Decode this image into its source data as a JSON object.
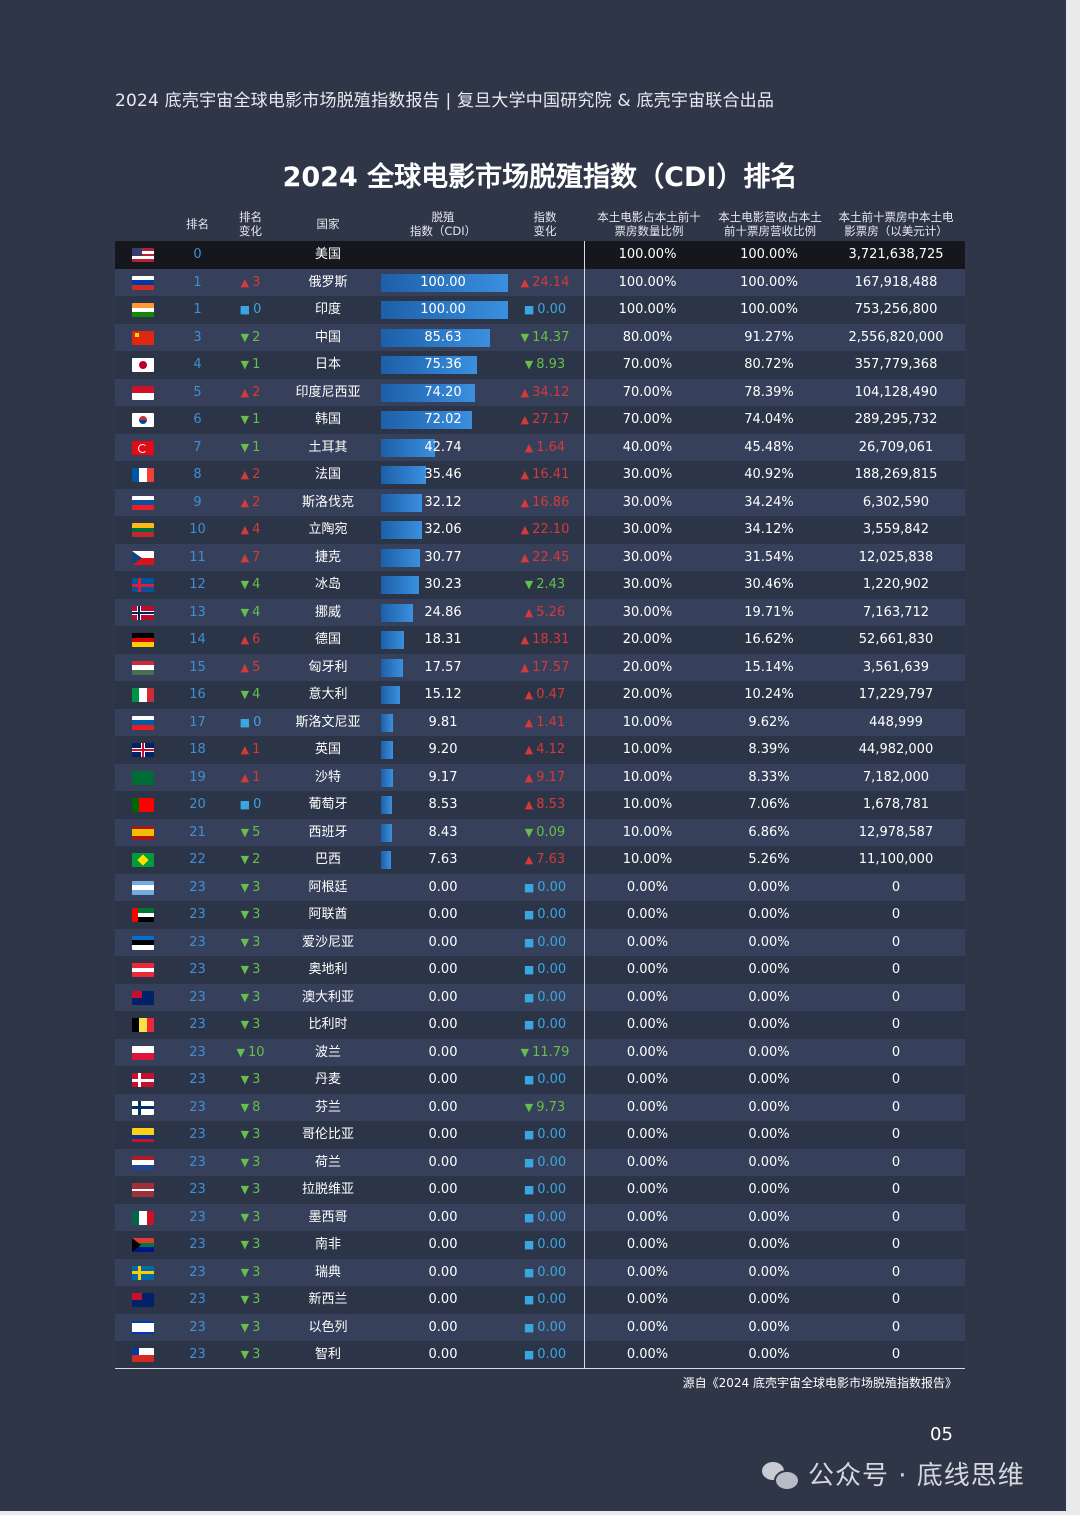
{
  "header": "2024 底壳宇宙全球电影市场脱殖指数报告 | 复旦大学中国研究院 & 底壳宇宙联合出品",
  "title": "2024 全球电影市场脱殖指数（CDI）排名",
  "columns": {
    "rank": "排名",
    "rank_change": "排名\n变化",
    "country": "国家",
    "cdi": "脱殖\n指数（CDI）",
    "index_change": "指数\n变化",
    "screen_share": "本土电影占本土前十\n票房数量比例",
    "revenue_share": "本土电影营收占本土\n前十票房营收比例",
    "box_office": "本土前十票房中本土电\n影票房（以美元计）"
  },
  "rows": [
    {
      "flag": "us-flag-icon",
      "rank": "0",
      "rank_change": "",
      "rank_dir": "",
      "country": "美国",
      "cdi": "",
      "cdi_value": 0,
      "index_change": "",
      "change_dir": "",
      "screen_share": "100.00%",
      "revenue_share": "100.00%",
      "box_office": "3,721,638,725"
    },
    {
      "flag": "ru-flag-icon",
      "rank": "1",
      "rank_change": "3",
      "rank_dir": "up",
      "country": "俄罗斯",
      "cdi": "100.00",
      "cdi_value": 100.0,
      "index_change": "24.14",
      "change_dir": "up",
      "screen_share": "100.00%",
      "revenue_share": "100.00%",
      "box_office": "167,918,488"
    },
    {
      "flag": "in-flag-icon",
      "rank": "1",
      "rank_change": "0",
      "rank_dir": "same",
      "country": "印度",
      "cdi": "100.00",
      "cdi_value": 100.0,
      "index_change": "0.00",
      "change_dir": "same",
      "screen_share": "100.00%",
      "revenue_share": "100.00%",
      "box_office": "753,256,800"
    },
    {
      "flag": "cn-flag-icon",
      "rank": "3",
      "rank_change": "2",
      "rank_dir": "down",
      "country": "中国",
      "cdi": "85.63",
      "cdi_value": 85.63,
      "index_change": "14.37",
      "change_dir": "down",
      "screen_share": "80.00%",
      "revenue_share": "91.27%",
      "box_office": "2,556,820,000"
    },
    {
      "flag": "jp-flag-icon",
      "rank": "4",
      "rank_change": "1",
      "rank_dir": "down",
      "country": "日本",
      "cdi": "75.36",
      "cdi_value": 75.36,
      "index_change": "8.93",
      "change_dir": "down",
      "screen_share": "70.00%",
      "revenue_share": "80.72%",
      "box_office": "357,779,368"
    },
    {
      "flag": "id-flag-icon",
      "rank": "5",
      "rank_change": "2",
      "rank_dir": "up",
      "country": "印度尼西亚",
      "cdi": "74.20",
      "cdi_value": 74.2,
      "index_change": "34.12",
      "change_dir": "up",
      "screen_share": "70.00%",
      "revenue_share": "78.39%",
      "box_office": "104,128,490"
    },
    {
      "flag": "kr-flag-icon",
      "rank": "6",
      "rank_change": "1",
      "rank_dir": "down",
      "country": "韩国",
      "cdi": "72.02",
      "cdi_value": 72.02,
      "index_change": "27.17",
      "change_dir": "up",
      "screen_share": "70.00%",
      "revenue_share": "74.04%",
      "box_office": "289,295,732"
    },
    {
      "flag": "tr-flag-icon",
      "rank": "7",
      "rank_change": "1",
      "rank_dir": "down",
      "country": "土耳其",
      "cdi": "42.74",
      "cdi_value": 42.74,
      "index_change": "1.64",
      "change_dir": "up",
      "screen_share": "40.00%",
      "revenue_share": "45.48%",
      "box_office": "26,709,061"
    },
    {
      "flag": "fr-flag-icon",
      "rank": "8",
      "rank_change": "2",
      "rank_dir": "up",
      "country": "法国",
      "cdi": "35.46",
      "cdi_value": 35.46,
      "index_change": "16.41",
      "change_dir": "up",
      "screen_share": "30.00%",
      "revenue_share": "40.92%",
      "box_office": "188,269,815"
    },
    {
      "flag": "sk-flag-icon",
      "rank": "9",
      "rank_change": "2",
      "rank_dir": "up",
      "country": "斯洛伐克",
      "cdi": "32.12",
      "cdi_value": 32.12,
      "index_change": "16.86",
      "change_dir": "up",
      "screen_share": "30.00%",
      "revenue_share": "34.24%",
      "box_office": "6,302,590"
    },
    {
      "flag": "lt-flag-icon",
      "rank": "10",
      "rank_change": "4",
      "rank_dir": "up",
      "country": "立陶宛",
      "cdi": "32.06",
      "cdi_value": 32.06,
      "index_change": "22.10",
      "change_dir": "up",
      "screen_share": "30.00%",
      "revenue_share": "34.12%",
      "box_office": "3,559,842"
    },
    {
      "flag": "cz-flag-icon",
      "rank": "11",
      "rank_change": "7",
      "rank_dir": "up",
      "country": "捷克",
      "cdi": "30.77",
      "cdi_value": 30.77,
      "index_change": "22.45",
      "change_dir": "up",
      "screen_share": "30.00%",
      "revenue_share": "31.54%",
      "box_office": "12,025,838"
    },
    {
      "flag": "is-flag-icon",
      "rank": "12",
      "rank_change": "4",
      "rank_dir": "down",
      "country": "冰岛",
      "cdi": "30.23",
      "cdi_value": 30.23,
      "index_change": "2.43",
      "change_dir": "down",
      "screen_share": "30.00%",
      "revenue_share": "30.46%",
      "box_office": "1,220,902"
    },
    {
      "flag": "no-flag-icon",
      "rank": "13",
      "rank_change": "4",
      "rank_dir": "down",
      "country": "挪威",
      "cdi": "24.86",
      "cdi_value": 24.86,
      "index_change": "5.26",
      "change_dir": "up",
      "screen_share": "30.00%",
      "revenue_share": "19.71%",
      "box_office": "7,163,712"
    },
    {
      "flag": "de-flag-icon",
      "rank": "14",
      "rank_change": "6",
      "rank_dir": "up",
      "country": "德国",
      "cdi": "18.31",
      "cdi_value": 18.31,
      "index_change": "18.31",
      "change_dir": "up",
      "screen_share": "20.00%",
      "revenue_share": "16.62%",
      "box_office": "52,661,830"
    },
    {
      "flag": "hu-flag-icon",
      "rank": "15",
      "rank_change": "5",
      "rank_dir": "up",
      "country": "匈牙利",
      "cdi": "17.57",
      "cdi_value": 17.57,
      "index_change": "17.57",
      "change_dir": "up",
      "screen_share": "20.00%",
      "revenue_share": "15.14%",
      "box_office": "3,561,639"
    },
    {
      "flag": "it-flag-icon",
      "rank": "16",
      "rank_change": "4",
      "rank_dir": "down",
      "country": "意大利",
      "cdi": "15.12",
      "cdi_value": 15.12,
      "index_change": "0.47",
      "change_dir": "up",
      "screen_share": "20.00%",
      "revenue_share": "10.24%",
      "box_office": "17,229,797"
    },
    {
      "flag": "si-flag-icon",
      "rank": "17",
      "rank_change": "0",
      "rank_dir": "same",
      "country": "斯洛文尼亚",
      "cdi": "9.81",
      "cdi_value": 9.81,
      "index_change": "1.41",
      "change_dir": "up",
      "screen_share": "10.00%",
      "revenue_share": "9.62%",
      "box_office": "448,999"
    },
    {
      "flag": "gb-flag-icon",
      "rank": "18",
      "rank_change": "1",
      "rank_dir": "up",
      "country": "英国",
      "cdi": "9.20",
      "cdi_value": 9.2,
      "index_change": "4.12",
      "change_dir": "up",
      "screen_share": "10.00%",
      "revenue_share": "8.39%",
      "box_office": "44,982,000"
    },
    {
      "flag": "sa-flag-icon",
      "rank": "19",
      "rank_change": "1",
      "rank_dir": "up",
      "country": "沙特",
      "cdi": "9.17",
      "cdi_value": 9.17,
      "index_change": "9.17",
      "change_dir": "up",
      "screen_share": "10.00%",
      "revenue_share": "8.33%",
      "box_office": "7,182,000"
    },
    {
      "flag": "pt-flag-icon",
      "rank": "20",
      "rank_change": "0",
      "rank_dir": "same",
      "country": "葡萄牙",
      "cdi": "8.53",
      "cdi_value": 8.53,
      "index_change": "8.53",
      "change_dir": "up",
      "screen_share": "10.00%",
      "revenue_share": "7.06%",
      "box_office": "1,678,781"
    },
    {
      "flag": "es-flag-icon",
      "rank": "21",
      "rank_change": "5",
      "rank_dir": "down",
      "country": "西班牙",
      "cdi": "8.43",
      "cdi_value": 8.43,
      "index_change": "0.09",
      "change_dir": "down",
      "screen_share": "10.00%",
      "revenue_share": "6.86%",
      "box_office": "12,978,587"
    },
    {
      "flag": "br-flag-icon",
      "rank": "22",
      "rank_change": "2",
      "rank_dir": "down",
      "country": "巴西",
      "cdi": "7.63",
      "cdi_value": 7.63,
      "index_change": "7.63",
      "change_dir": "up",
      "screen_share": "10.00%",
      "revenue_share": "5.26%",
      "box_office": "11,100,000"
    },
    {
      "flag": "ar-flag-icon",
      "rank": "23",
      "rank_change": "3",
      "rank_dir": "down",
      "country": "阿根廷",
      "cdi": "0.00",
      "cdi_value": 0,
      "index_change": "0.00",
      "change_dir": "same",
      "screen_share": "0.00%",
      "revenue_share": "0.00%",
      "box_office": "0"
    },
    {
      "flag": "ae-flag-icon",
      "rank": "23",
      "rank_change": "3",
      "rank_dir": "down",
      "country": "阿联酋",
      "cdi": "0.00",
      "cdi_value": 0,
      "index_change": "0.00",
      "change_dir": "same",
      "screen_share": "0.00%",
      "revenue_share": "0.00%",
      "box_office": "0"
    },
    {
      "flag": "ee-flag-icon",
      "rank": "23",
      "rank_change": "3",
      "rank_dir": "down",
      "country": "爱沙尼亚",
      "cdi": "0.00",
      "cdi_value": 0,
      "index_change": "0.00",
      "change_dir": "same",
      "screen_share": "0.00%",
      "revenue_share": "0.00%",
      "box_office": "0"
    },
    {
      "flag": "at-flag-icon",
      "rank": "23",
      "rank_change": "3",
      "rank_dir": "down",
      "country": "奥地利",
      "cdi": "0.00",
      "cdi_value": 0,
      "index_change": "0.00",
      "change_dir": "same",
      "screen_share": "0.00%",
      "revenue_share": "0.00%",
      "box_office": "0"
    },
    {
      "flag": "au-flag-icon",
      "rank": "23",
      "rank_change": "3",
      "rank_dir": "down",
      "country": "澳大利亚",
      "cdi": "0.00",
      "cdi_value": 0,
      "index_change": "0.00",
      "change_dir": "same",
      "screen_share": "0.00%",
      "revenue_share": "0.00%",
      "box_office": "0"
    },
    {
      "flag": "be-flag-icon",
      "rank": "23",
      "rank_change": "3",
      "rank_dir": "down",
      "country": "比利时",
      "cdi": "0.00",
      "cdi_value": 0,
      "index_change": "0.00",
      "change_dir": "same",
      "screen_share": "0.00%",
      "revenue_share": "0.00%",
      "box_office": "0"
    },
    {
      "flag": "pl-flag-icon",
      "rank": "23",
      "rank_change": "10",
      "rank_dir": "down",
      "country": "波兰",
      "cdi": "0.00",
      "cdi_value": 0,
      "index_change": "11.79",
      "change_dir": "down",
      "screen_share": "0.00%",
      "revenue_share": "0.00%",
      "box_office": "0"
    },
    {
      "flag": "dk-flag-icon",
      "rank": "23",
      "rank_change": "3",
      "rank_dir": "down",
      "country": "丹麦",
      "cdi": "0.00",
      "cdi_value": 0,
      "index_change": "0.00",
      "change_dir": "same",
      "screen_share": "0.00%",
      "revenue_share": "0.00%",
      "box_office": "0"
    },
    {
      "flag": "fi-flag-icon",
      "rank": "23",
      "rank_change": "8",
      "rank_dir": "down",
      "country": "芬兰",
      "cdi": "0.00",
      "cdi_value": 0,
      "index_change": "9.73",
      "change_dir": "down",
      "screen_share": "0.00%",
      "revenue_share": "0.00%",
      "box_office": "0"
    },
    {
      "flag": "co-flag-icon",
      "rank": "23",
      "rank_change": "3",
      "rank_dir": "down",
      "country": "哥伦比亚",
      "cdi": "0.00",
      "cdi_value": 0,
      "index_change": "0.00",
      "change_dir": "same",
      "screen_share": "0.00%",
      "revenue_share": "0.00%",
      "box_office": "0"
    },
    {
      "flag": "nl-flag-icon",
      "rank": "23",
      "rank_change": "3",
      "rank_dir": "down",
      "country": "荷兰",
      "cdi": "0.00",
      "cdi_value": 0,
      "index_change": "0.00",
      "change_dir": "same",
      "screen_share": "0.00%",
      "revenue_share": "0.00%",
      "box_office": "0"
    },
    {
      "flag": "lv-flag-icon",
      "rank": "23",
      "rank_change": "3",
      "rank_dir": "down",
      "country": "拉脱维亚",
      "cdi": "0.00",
      "cdi_value": 0,
      "index_change": "0.00",
      "change_dir": "same",
      "screen_share": "0.00%",
      "revenue_share": "0.00%",
      "box_office": "0"
    },
    {
      "flag": "mx-flag-icon",
      "rank": "23",
      "rank_change": "3",
      "rank_dir": "down",
      "country": "墨西哥",
      "cdi": "0.00",
      "cdi_value": 0,
      "index_change": "0.00",
      "change_dir": "same",
      "screen_share": "0.00%",
      "revenue_share": "0.00%",
      "box_office": "0"
    },
    {
      "flag": "za-flag-icon",
      "rank": "23",
      "rank_change": "3",
      "rank_dir": "down",
      "country": "南非",
      "cdi": "0.00",
      "cdi_value": 0,
      "index_change": "0.00",
      "change_dir": "same",
      "screen_share": "0.00%",
      "revenue_share": "0.00%",
      "box_office": "0"
    },
    {
      "flag": "se-flag-icon",
      "rank": "23",
      "rank_change": "3",
      "rank_dir": "down",
      "country": "瑞典",
      "cdi": "0.00",
      "cdi_value": 0,
      "index_change": "0.00",
      "change_dir": "same",
      "screen_share": "0.00%",
      "revenue_share": "0.00%",
      "box_office": "0"
    },
    {
      "flag": "nz-flag-icon",
      "rank": "23",
      "rank_change": "3",
      "rank_dir": "down",
      "country": "新西兰",
      "cdi": "0.00",
      "cdi_value": 0,
      "index_change": "0.00",
      "change_dir": "same",
      "screen_share": "0.00%",
      "revenue_share": "0.00%",
      "box_office": "0"
    },
    {
      "flag": "il-flag-icon",
      "rank": "23",
      "rank_change": "3",
      "rank_dir": "down",
      "country": "以色列",
      "cdi": "0.00",
      "cdi_value": 0,
      "index_change": "0.00",
      "change_dir": "same",
      "screen_share": "0.00%",
      "revenue_share": "0.00%",
      "box_office": "0"
    },
    {
      "flag": "cl-flag-icon",
      "rank": "23",
      "rank_change": "3",
      "rank_dir": "down",
      "country": "智利",
      "cdi": "0.00",
      "cdi_value": 0,
      "index_change": "0.00",
      "change_dir": "same",
      "screen_share": "0.00%",
      "revenue_share": "0.00%",
      "box_office": "0"
    }
  ],
  "source": "源自《2024 底壳宇宙全球电影市场脱殖指数报告》",
  "page_number": "05",
  "watermark": "公众号 · 底线思维",
  "colors": {
    "background": "#2e3648",
    "bar": "#2d7fd0",
    "up": "#d43a3a",
    "down": "#66be4c",
    "same": "#3aa6e0"
  }
}
